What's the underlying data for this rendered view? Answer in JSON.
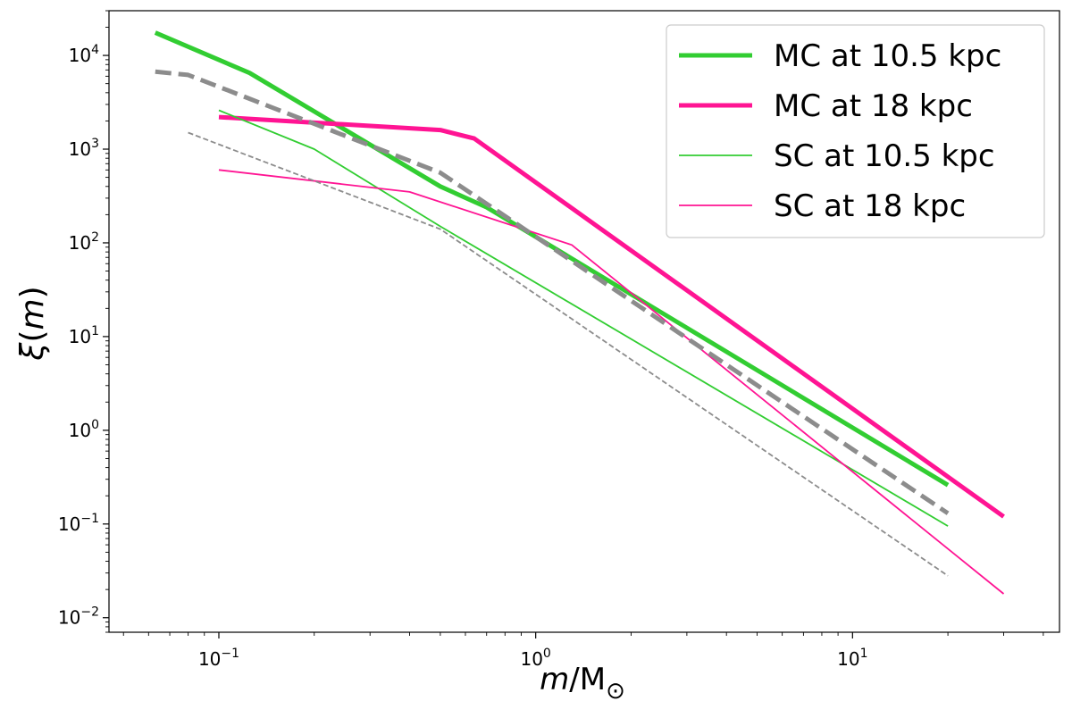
{
  "chart_data": {
    "type": "line",
    "title": "",
    "xscale": "log",
    "yscale": "log",
    "xlim": [
      0.045,
      45
    ],
    "ylim": [
      0.007,
      30000
    ],
    "xlabel": {
      "base": "m",
      "sep": "/M",
      "sub": "⊙"
    },
    "ylabel": {
      "base": "ξ",
      "arg": "m",
      "open": "(",
      "close": ")"
    },
    "x_ticks": [
      {
        "value": 0.1,
        "base": "10",
        "exp": "−1"
      },
      {
        "value": 1,
        "base": "10",
        "exp": "0"
      },
      {
        "value": 10,
        "base": "10",
        "exp": "1"
      }
    ],
    "y_ticks": [
      {
        "value": 0.01,
        "base": "10",
        "exp": "−2"
      },
      {
        "value": 0.1,
        "base": "10",
        "exp": "−1"
      },
      {
        "value": 1,
        "base": "10",
        "exp": "0"
      },
      {
        "value": 10,
        "base": "10",
        "exp": "1"
      },
      {
        "value": 100,
        "base": "10",
        "exp": "2"
      },
      {
        "value": 1000,
        "base": "10",
        "exp": "3"
      },
      {
        "value": 10000,
        "base": "10",
        "exp": "4"
      }
    ],
    "legend_position": "top-right",
    "series": [
      {
        "name": "MC at 10.5 kpc",
        "color": "#32CD32",
        "style": "solid",
        "weight": "thick",
        "in_legend": true,
        "x": [
          0.063,
          0.125,
          0.5,
          0.7,
          20
        ],
        "y": [
          17500,
          6500,
          400,
          240,
          0.26
        ]
      },
      {
        "name": "MC at 18 kpc",
        "color": "#FF1493",
        "style": "solid",
        "weight": "thick",
        "in_legend": true,
        "x": [
          0.1,
          0.5,
          0.64,
          30
        ],
        "y": [
          2200,
          1600,
          1300,
          0.12
        ]
      },
      {
        "name": "SC at 10.5 kpc",
        "color": "#32CD32",
        "style": "solid",
        "weight": "thin",
        "in_legend": true,
        "x": [
          0.1,
          0.2,
          0.5,
          20
        ],
        "y": [
          2600,
          1000,
          150,
          0.095
        ]
      },
      {
        "name": "SC at 18 kpc",
        "color": "#FF1493",
        "style": "solid",
        "weight": "thin",
        "in_legend": true,
        "x": [
          0.1,
          0.4,
          1.3,
          30
        ],
        "y": [
          600,
          350,
          95,
          0.018
        ]
      },
      {
        "name": "reference (thick dashed)",
        "color": "#8C8C8C",
        "style": "dashed",
        "weight": "thick",
        "in_legend": false,
        "x": [
          0.063,
          0.08,
          0.5,
          20
        ],
        "y": [
          6700,
          6200,
          560,
          0.13
        ]
      },
      {
        "name": "reference (thin dashed)",
        "color": "#8C8C8C",
        "style": "dashed",
        "weight": "thin",
        "in_legend": false,
        "x": [
          0.08,
          0.5,
          20
        ],
        "y": [
          1500,
          140,
          0.028
        ]
      }
    ]
  }
}
